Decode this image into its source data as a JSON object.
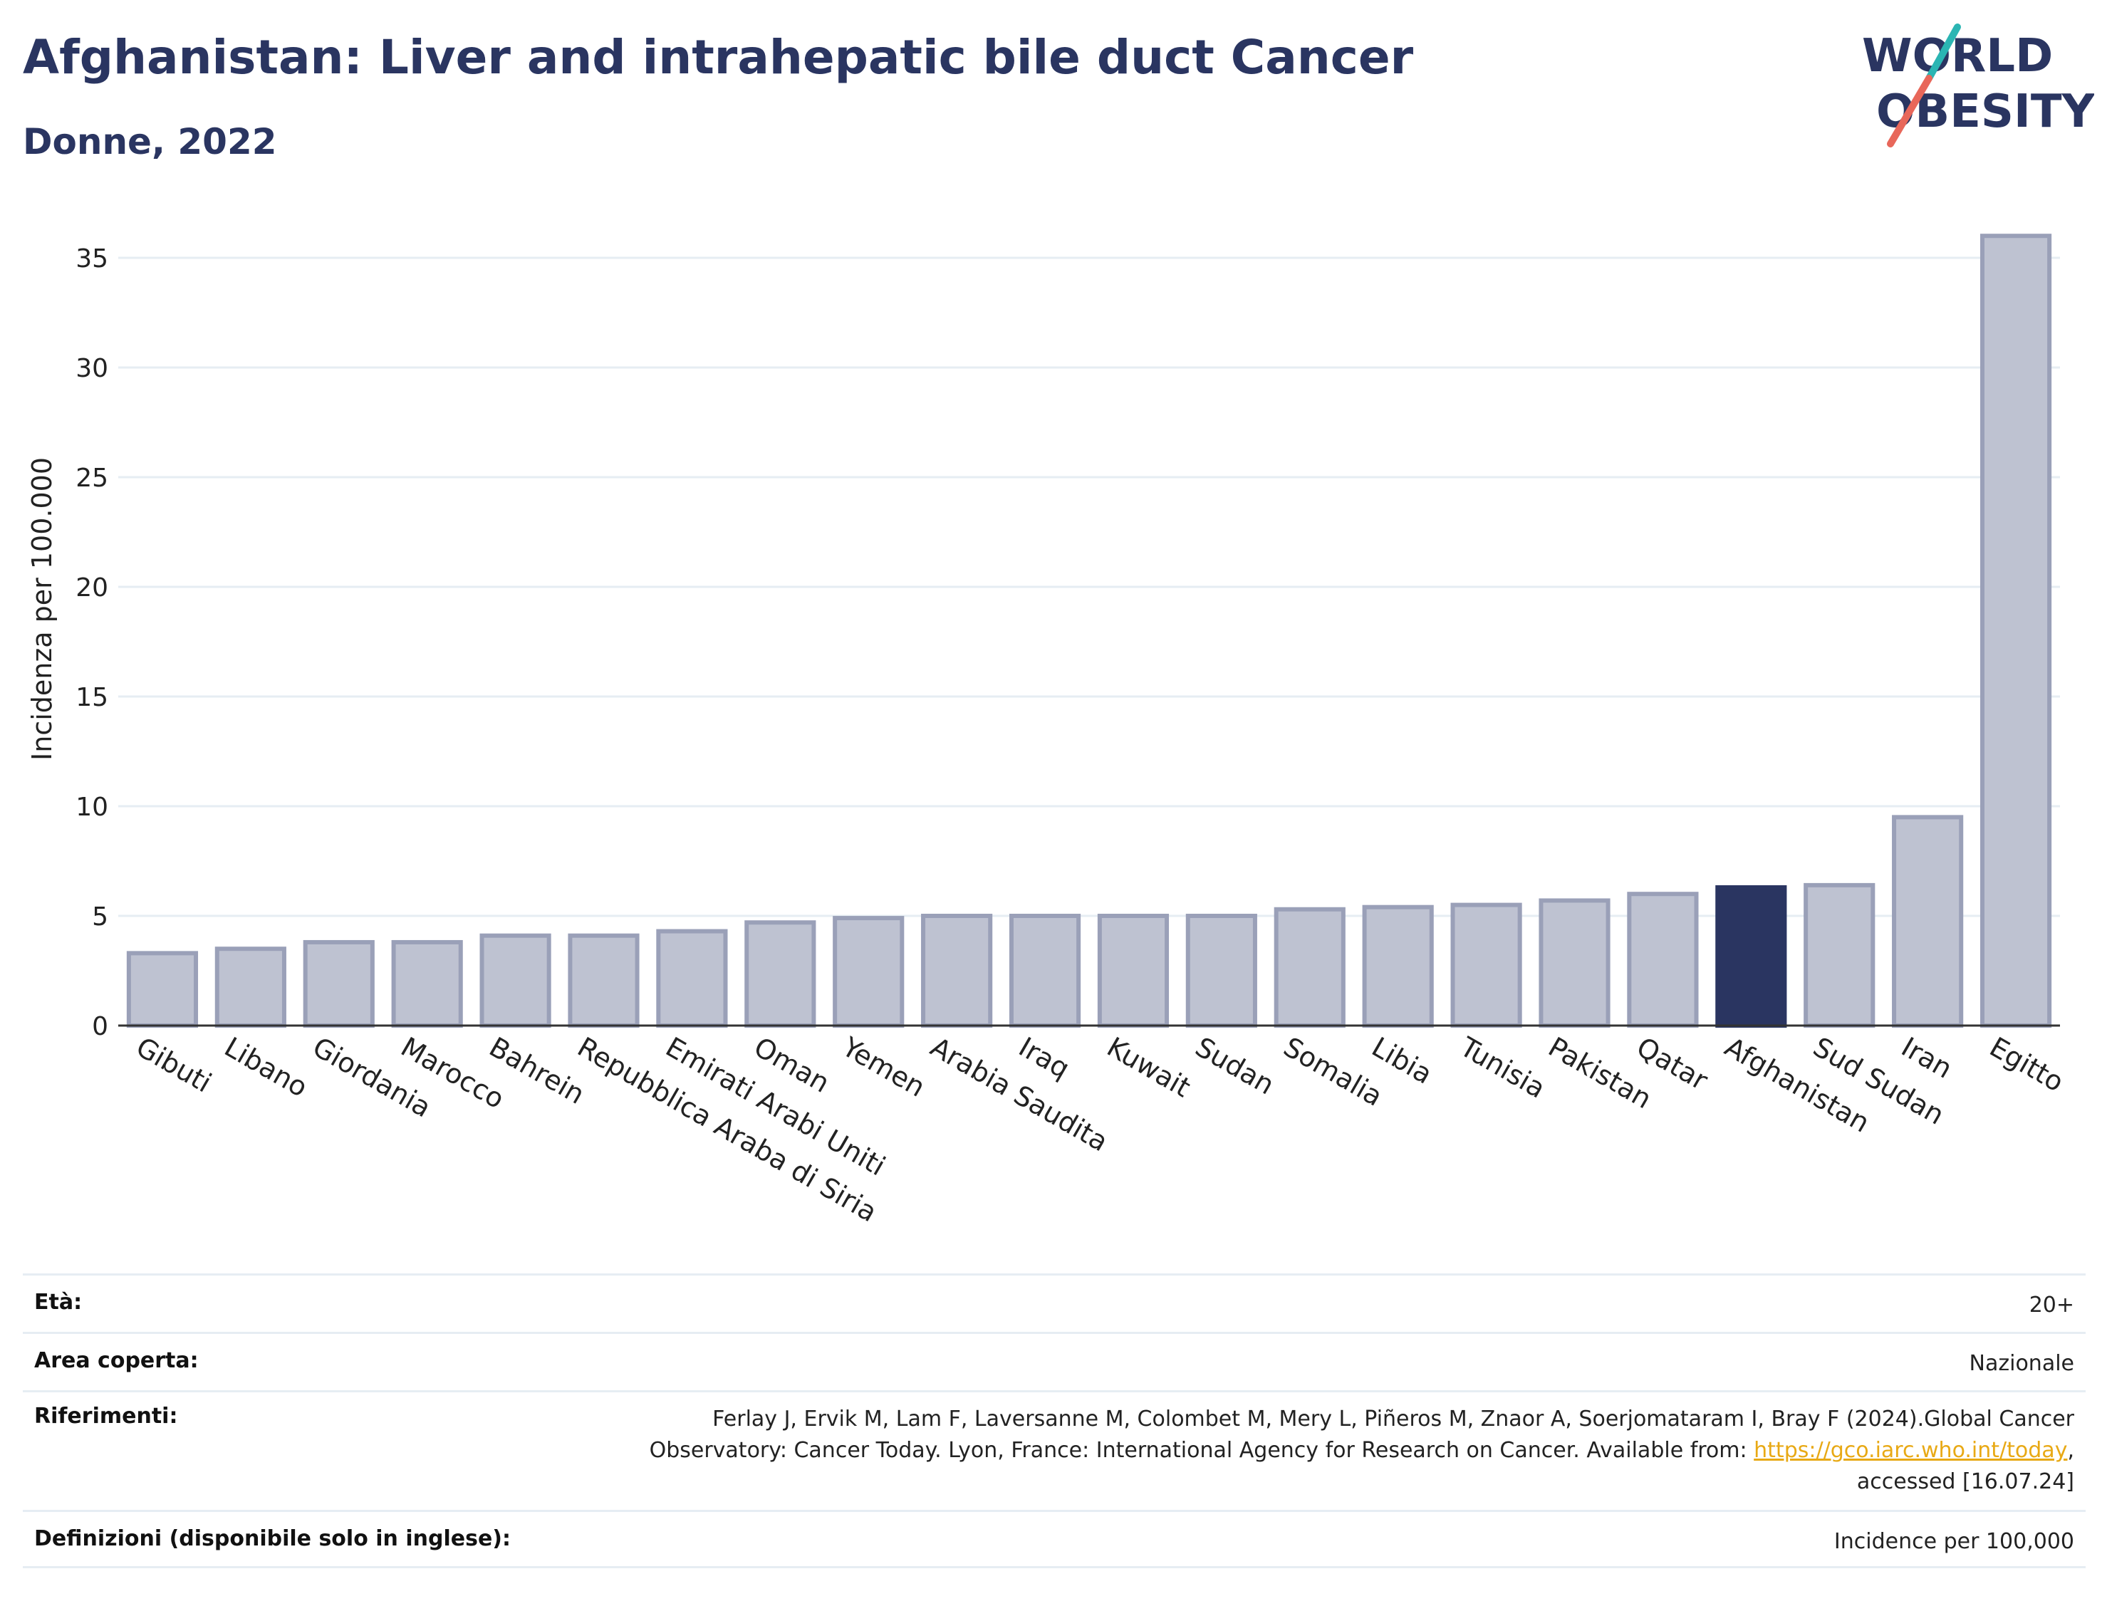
{
  "header": {
    "title": "Afghanistan: Liver and intrahepatic bile duct Cancer",
    "subtitle": "Donne, 2022"
  },
  "logo": {
    "line1": "WORLD",
    "line2": "OBESITY",
    "accent_teal": "#2bb5b3",
    "accent_red": "#e8675a"
  },
  "colors": {
    "bar": "#bec2d1",
    "bar_stroke": "#9aa0b8",
    "highlight": "#2a3561",
    "grid": "#e6edf3",
    "text": "#2a3561"
  },
  "chart_data": {
    "type": "bar",
    "ylabel": "Incidenza per 100.000",
    "ylim": [
      0,
      37
    ],
    "yticks": [
      0,
      5,
      10,
      15,
      20,
      25,
      30,
      35
    ],
    "grid": true,
    "highlight": "Afghanistan",
    "categories": [
      "Gibuti",
      "Libano",
      "Giordania",
      "Marocco",
      "Bahrein",
      "Repubblica Araba di Siria",
      "Emirati Arabi Uniti",
      "Oman",
      "Yemen",
      "Arabia Saudita",
      "Iraq",
      "Kuwait",
      "Sudan",
      "Somalia",
      "Libia",
      "Tunisia",
      "Pakistan",
      "Qatar",
      "Afghanistan",
      "Sud Sudan",
      "Iran",
      "Egitto"
    ],
    "values": [
      3.3,
      3.5,
      3.8,
      3.8,
      4.1,
      4.1,
      4.3,
      4.7,
      4.9,
      5.0,
      5.0,
      5.0,
      5.0,
      5.3,
      5.4,
      5.5,
      5.7,
      6.0,
      6.3,
      6.4,
      9.5,
      36.0
    ]
  },
  "meta": {
    "age": {
      "label": "Età:",
      "value": "20+"
    },
    "area": {
      "label": "Area coperta:",
      "value": "Nazionale"
    },
    "refs": {
      "label": "Riferimenti:",
      "line1": "Ferlay J, Ervik M, Lam F, Laversanne M, Colombet M, Mery L, Piñeros M, Znaor A, Soerjomataram I, Bray F (2024).Global Cancer",
      "line2_prefix": "Observatory: Cancer Today. Lyon, France: International Agency for Research on Cancer. Available from: ",
      "link": "https://gco.iarc.who.int/today",
      "line2_suffix": ",",
      "line3": "accessed [16.07.24]"
    },
    "defs": {
      "label": "Definizioni (disponibile solo in inglese):",
      "value": "Incidence per 100,000"
    }
  }
}
